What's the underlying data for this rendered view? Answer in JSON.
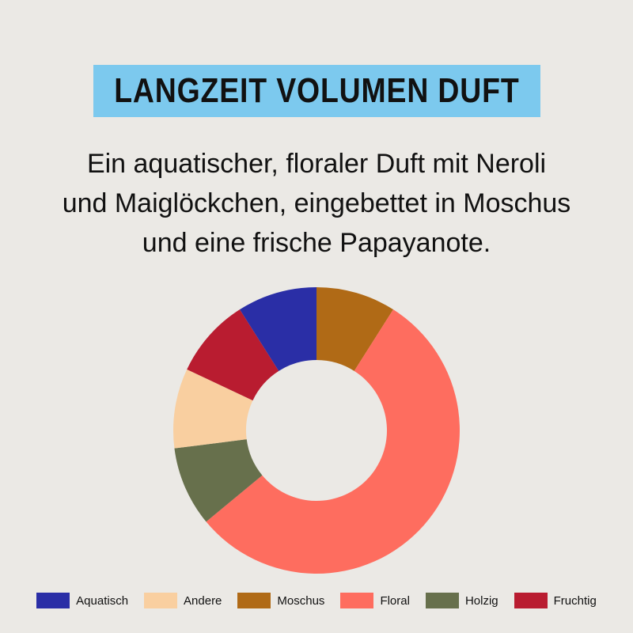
{
  "title": "LANGZEIT VOLUMEN DUFT",
  "subtitle_lines": [
    "Ein aquatischer, floraler Duft mit Neroli",
    "und Maiglöckchen, eingebettet in Moschus",
    "und eine frische Papayanote."
  ],
  "colors": {
    "background": "#ebe9e5",
    "title_bg": "#7cc9ee"
  },
  "chart_data": {
    "type": "pie",
    "donut": true,
    "start": "top",
    "direction": "clockwise",
    "slices": [
      {
        "name": "Moschus",
        "value": 9,
        "color": "#b06a16"
      },
      {
        "name": "Floral",
        "value": 55,
        "color": "#fe6d5f"
      },
      {
        "name": "Holzig",
        "value": 9,
        "color": "#67704c"
      },
      {
        "name": "Andere",
        "value": 9,
        "color": "#f9cfa0"
      },
      {
        "name": "Fruchtig",
        "value": 9,
        "color": "#b91c30"
      },
      {
        "name": "Aquatisch",
        "value": 9,
        "color": "#2a2ea6"
      }
    ],
    "legend_placement": "bottom",
    "legend": [
      {
        "name": "Aquatisch",
        "color": "#2a2ea6"
      },
      {
        "name": "Andere",
        "color": "#f9cfa0"
      },
      {
        "name": "Moschus",
        "color": "#b06a16"
      },
      {
        "name": "Floral",
        "color": "#fe6d5f"
      },
      {
        "name": "Holzig",
        "color": "#67704c"
      },
      {
        "name": "Fruchtig",
        "color": "#b91c30"
      }
    ]
  }
}
